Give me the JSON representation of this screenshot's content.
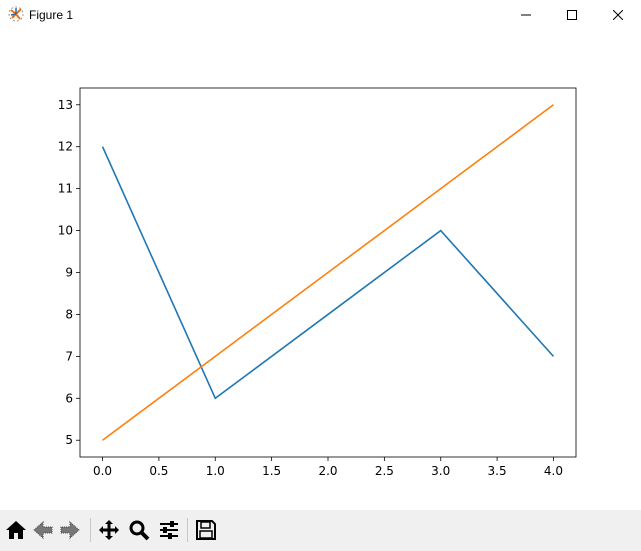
{
  "window": {
    "title": "Figure 1",
    "app_icon": "matplotlib-icon"
  },
  "window_controls": [
    "minimize",
    "maximize",
    "close"
  ],
  "toolbar": {
    "buttons": [
      "home",
      "back",
      "forward",
      "pan",
      "zoom",
      "configure-subplots",
      "save"
    ]
  },
  "chart_data": {
    "type": "line",
    "x": [
      0,
      1,
      2,
      3,
      4
    ],
    "series": [
      {
        "values": [
          12,
          6,
          8,
          10,
          7
        ],
        "color": "#1f77b4"
      },
      {
        "values": [
          5,
          7,
          9,
          11,
          13
        ],
        "color": "#ff7f0e"
      }
    ],
    "xlim": [
      -0.2,
      4.2
    ],
    "ylim": [
      4.6,
      13.4
    ],
    "xticks": [
      "0.0",
      "0.5",
      "1.0",
      "1.5",
      "2.0",
      "2.5",
      "3.0",
      "3.5",
      "4.0"
    ],
    "yticks": [
      "5",
      "6",
      "7",
      "8",
      "9",
      "10",
      "11",
      "12",
      "13"
    ],
    "grid": false,
    "title": "",
    "xlabel": "",
    "ylabel": ""
  }
}
